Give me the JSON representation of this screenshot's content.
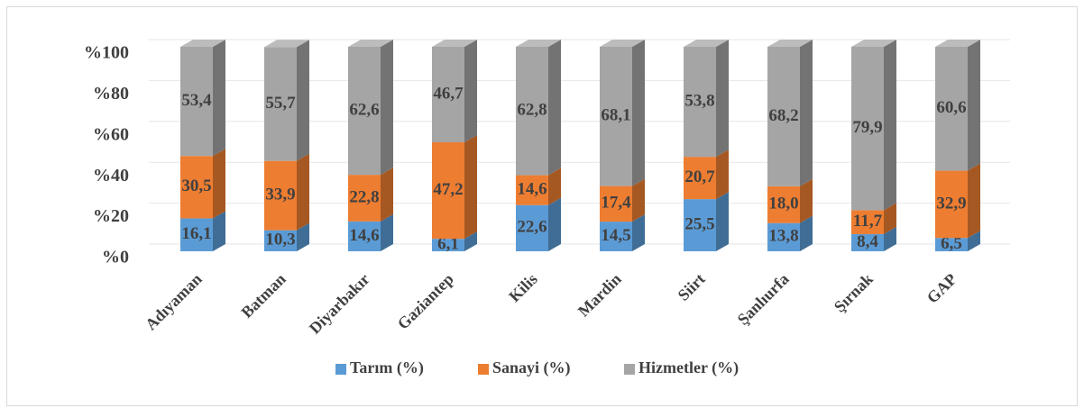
{
  "chart_data": {
    "type": "bar3d_stacked",
    "categories": [
      "Adıyaman",
      "Batman",
      "Diyarbakır",
      "Gaziantep",
      "Kilis",
      "Mardin",
      "Siirt",
      "Şanlıurfa",
      "Şırnak",
      "GAP"
    ],
    "series": [
      {
        "name": "Tarım (%)",
        "color": "#5b9bd5",
        "values": [
          16.1,
          10.3,
          14.6,
          6.1,
          22.6,
          14.5,
          25.5,
          13.8,
          8.4,
          6.5
        ],
        "value_labels": [
          "16,1",
          "10,3",
          "14,6",
          "6,1",
          "22,6",
          "14,5",
          "25,5",
          "13,8",
          "8,4",
          "6,5"
        ]
      },
      {
        "name": "Sanayi (%)",
        "color": "#ed7d31",
        "values": [
          30.5,
          33.9,
          22.8,
          47.2,
          14.6,
          17.4,
          20.7,
          18.0,
          11.7,
          32.9
        ],
        "value_labels": [
          "30,5",
          "33,9",
          "22,8",
          "47,2",
          "14,6",
          "17,4",
          "20,7",
          "18,0",
          "11,7",
          "32,9"
        ]
      },
      {
        "name": "Hizmetler (%)",
        "color": "#a5a5a5",
        "values": [
          53.4,
          55.7,
          62.6,
          46.7,
          62.8,
          68.1,
          53.8,
          68.2,
          79.9,
          60.6
        ],
        "value_labels": [
          "53,4",
          "55,7",
          "62,6",
          "46,7",
          "62,8",
          "68,1",
          "53,8",
          "68,2",
          "79,9",
          "60,6"
        ]
      }
    ],
    "ylim": [
      0,
      100
    ],
    "yticks": [
      {
        "value": 0,
        "label": "%0"
      },
      {
        "value": 20,
        "label": "%20"
      },
      {
        "value": 40,
        "label": "%40"
      },
      {
        "value": 60,
        "label": "%60"
      },
      {
        "value": 80,
        "label": "%80"
      },
      {
        "value": 100,
        "label": "%100"
      }
    ],
    "grid": true,
    "legend": "bottom"
  }
}
